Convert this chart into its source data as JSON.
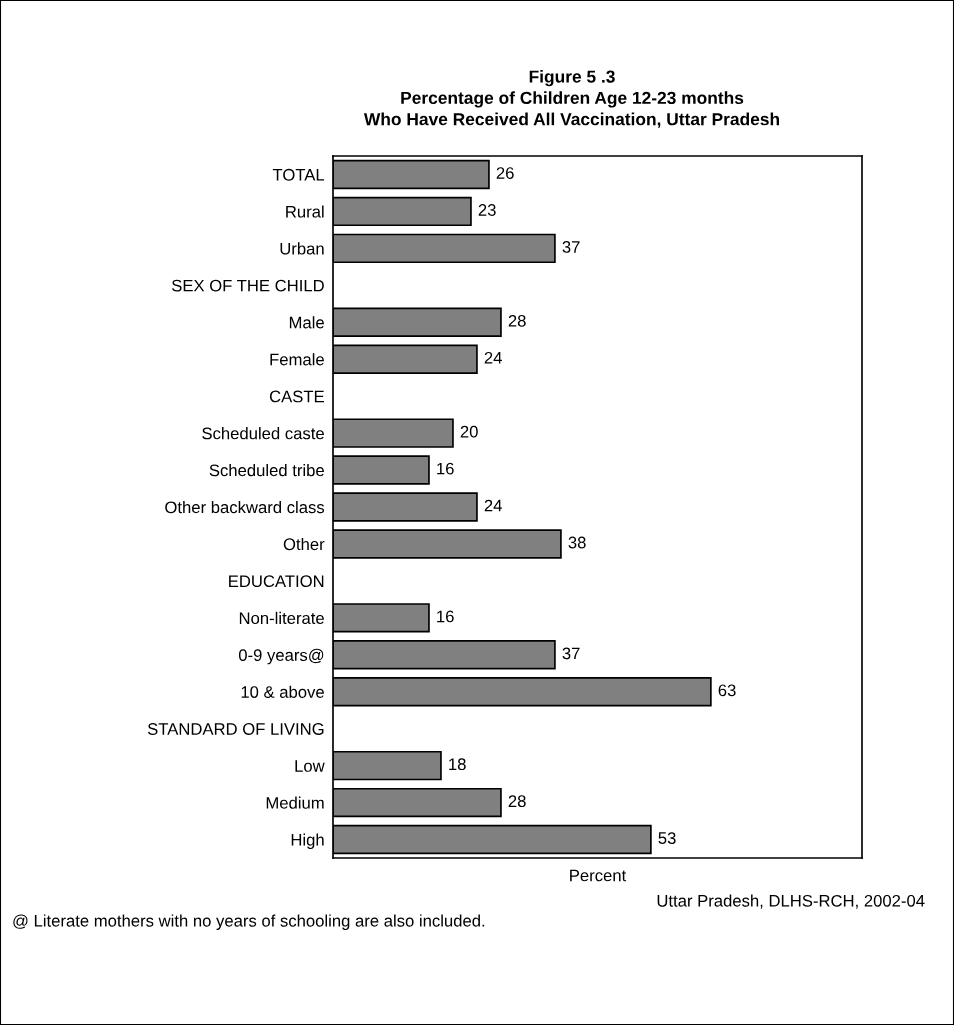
{
  "chart_data": {
    "type": "bar",
    "orientation": "horizontal",
    "title": "Figure 5 .3\nPercentage of Children Age 12-23 months\nWho Have Received All Vaccination, Uttar Pradesh",
    "xlabel": "Percent",
    "categories": [
      "TOTAL",
      "Rural",
      "Urban",
      "SEX OF THE CHILD",
      "Male",
      "Female",
      "CASTE",
      "Scheduled caste",
      "Scheduled tribe",
      "Other backward class",
      "Other",
      "EDUCATION",
      "Non-literate",
      "0-9 years@",
      "10 & above",
      "STANDARD OF LIVING",
      "Low",
      "Medium",
      "High"
    ],
    "values": [
      26,
      23,
      37,
      null,
      28,
      24,
      null,
      20,
      16,
      24,
      38,
      null,
      16,
      37,
      63,
      null,
      18,
      28,
      53
    ],
    "color": "#808080",
    "data_labels": true,
    "grid": false,
    "legend": false,
    "annotations": [
      "Uttar Pradesh, DLHS-RCH, 2002-04",
      "@ Literate mothers with no years of schooling are also included."
    ]
  }
}
